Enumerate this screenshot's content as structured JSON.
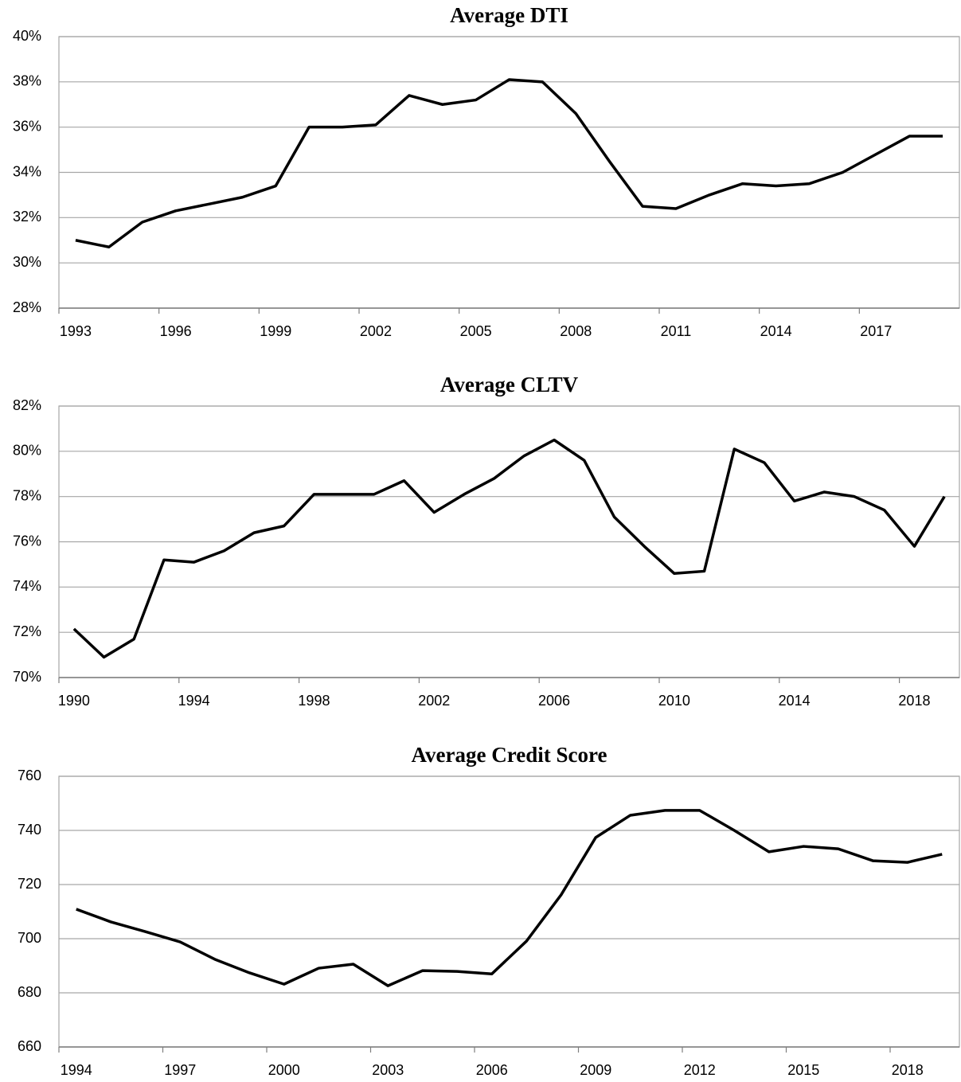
{
  "chart_data": [
    {
      "type": "line",
      "title": "Average DTI",
      "color": "#000000",
      "grid": true,
      "x": [
        1993,
        1994,
        1995,
        1996,
        1997,
        1998,
        1999,
        2000,
        2001,
        2002,
        2003,
        2004,
        2005,
        2006,
        2007,
        2008,
        2009,
        2010,
        2011,
        2012,
        2013,
        2014,
        2015,
        2016,
        2017,
        2018,
        2019
      ],
      "values": [
        31.0,
        30.7,
        31.8,
        32.3,
        32.6,
        32.9,
        33.4,
        36.0,
        36.0,
        36.1,
        37.4,
        37.0,
        37.2,
        38.1,
        38.0,
        36.6,
        34.5,
        32.5,
        32.4,
        33.0,
        33.5,
        33.4,
        33.5,
        34.0,
        34.8,
        35.6,
        35.6
      ],
      "xlim": [
        1992.5,
        2019.5
      ],
      "xticks": [
        1993,
        1996,
        1999,
        2002,
        2005,
        2008,
        2011,
        2014,
        2017
      ],
      "ylim": [
        28,
        40
      ],
      "yticks": [
        {
          "value": 28,
          "label": "28%"
        },
        {
          "value": 30,
          "label": "30%"
        },
        {
          "value": 32,
          "label": "32%"
        },
        {
          "value": 34,
          "label": "34%"
        },
        {
          "value": 36,
          "label": "36%"
        },
        {
          "value": 38,
          "label": "38%"
        },
        {
          "value": 40,
          "label": "40%"
        }
      ]
    },
    {
      "type": "line",
      "title": "Average CLTV",
      "color": "#000000",
      "grid": true,
      "x": [
        1990,
        1991,
        1992,
        1993,
        1994,
        1995,
        1996,
        1997,
        1998,
        1999,
        2000,
        2001,
        2002,
        2003,
        2004,
        2005,
        2006,
        2007,
        2008,
        2009,
        2010,
        2011,
        2012,
        2013,
        2014,
        2015,
        2016,
        2017,
        2018,
        2019
      ],
      "values": [
        72.15,
        70.9,
        71.7,
        75.2,
        75.1,
        75.6,
        76.4,
        76.7,
        78.1,
        78.1,
        78.1,
        78.7,
        77.3,
        78.1,
        78.8,
        79.8,
        80.5,
        79.6,
        77.1,
        75.8,
        74.6,
        74.7,
        80.1,
        79.5,
        77.8,
        78.2,
        78.0,
        77.4,
        75.8,
        78.0
      ],
      "xlim": [
        1989.5,
        2019.5
      ],
      "xticks": [
        1990,
        1994,
        1998,
        2002,
        2006,
        2010,
        2014,
        2018
      ],
      "ylim": [
        70,
        82
      ],
      "yticks": [
        {
          "value": 70,
          "label": "70%"
        },
        {
          "value": 72,
          "label": "72%"
        },
        {
          "value": 74,
          "label": "74%"
        },
        {
          "value": 76,
          "label": "76%"
        },
        {
          "value": 78,
          "label": "78%"
        },
        {
          "value": 80,
          "label": "80%"
        },
        {
          "value": 82,
          "label": "82%"
        }
      ]
    },
    {
      "type": "line",
      "title": "Average Credit Score",
      "color": "#000000",
      "grid": true,
      "x": [
        1994,
        1995,
        1996,
        1997,
        1998,
        1999,
        2000,
        2001,
        2002,
        2003,
        2004,
        2005,
        2006,
        2007,
        2008,
        2009,
        2010,
        2011,
        2012,
        2013,
        2014,
        2015,
        2016,
        2017,
        2018,
        2019
      ],
      "values": [
        710.9,
        706.2,
        702.6,
        698.8,
        692.4,
        687.4,
        683.2,
        689.1,
        690.6,
        682.6,
        688.2,
        687.9,
        687.0,
        699.1,
        716.2,
        737.4,
        745.6,
        747.4,
        747.4,
        740.0,
        732.1,
        734.1,
        733.2,
        728.8,
        728.2,
        731.2
      ],
      "xlim": [
        1993.5,
        2019.5
      ],
      "xticks": [
        1994,
        1997,
        2000,
        2003,
        2006,
        2009,
        2012,
        2015,
        2018
      ],
      "ylim": [
        660,
        760
      ],
      "yticks": [
        660,
        680,
        700,
        720,
        740,
        760
      ]
    }
  ]
}
